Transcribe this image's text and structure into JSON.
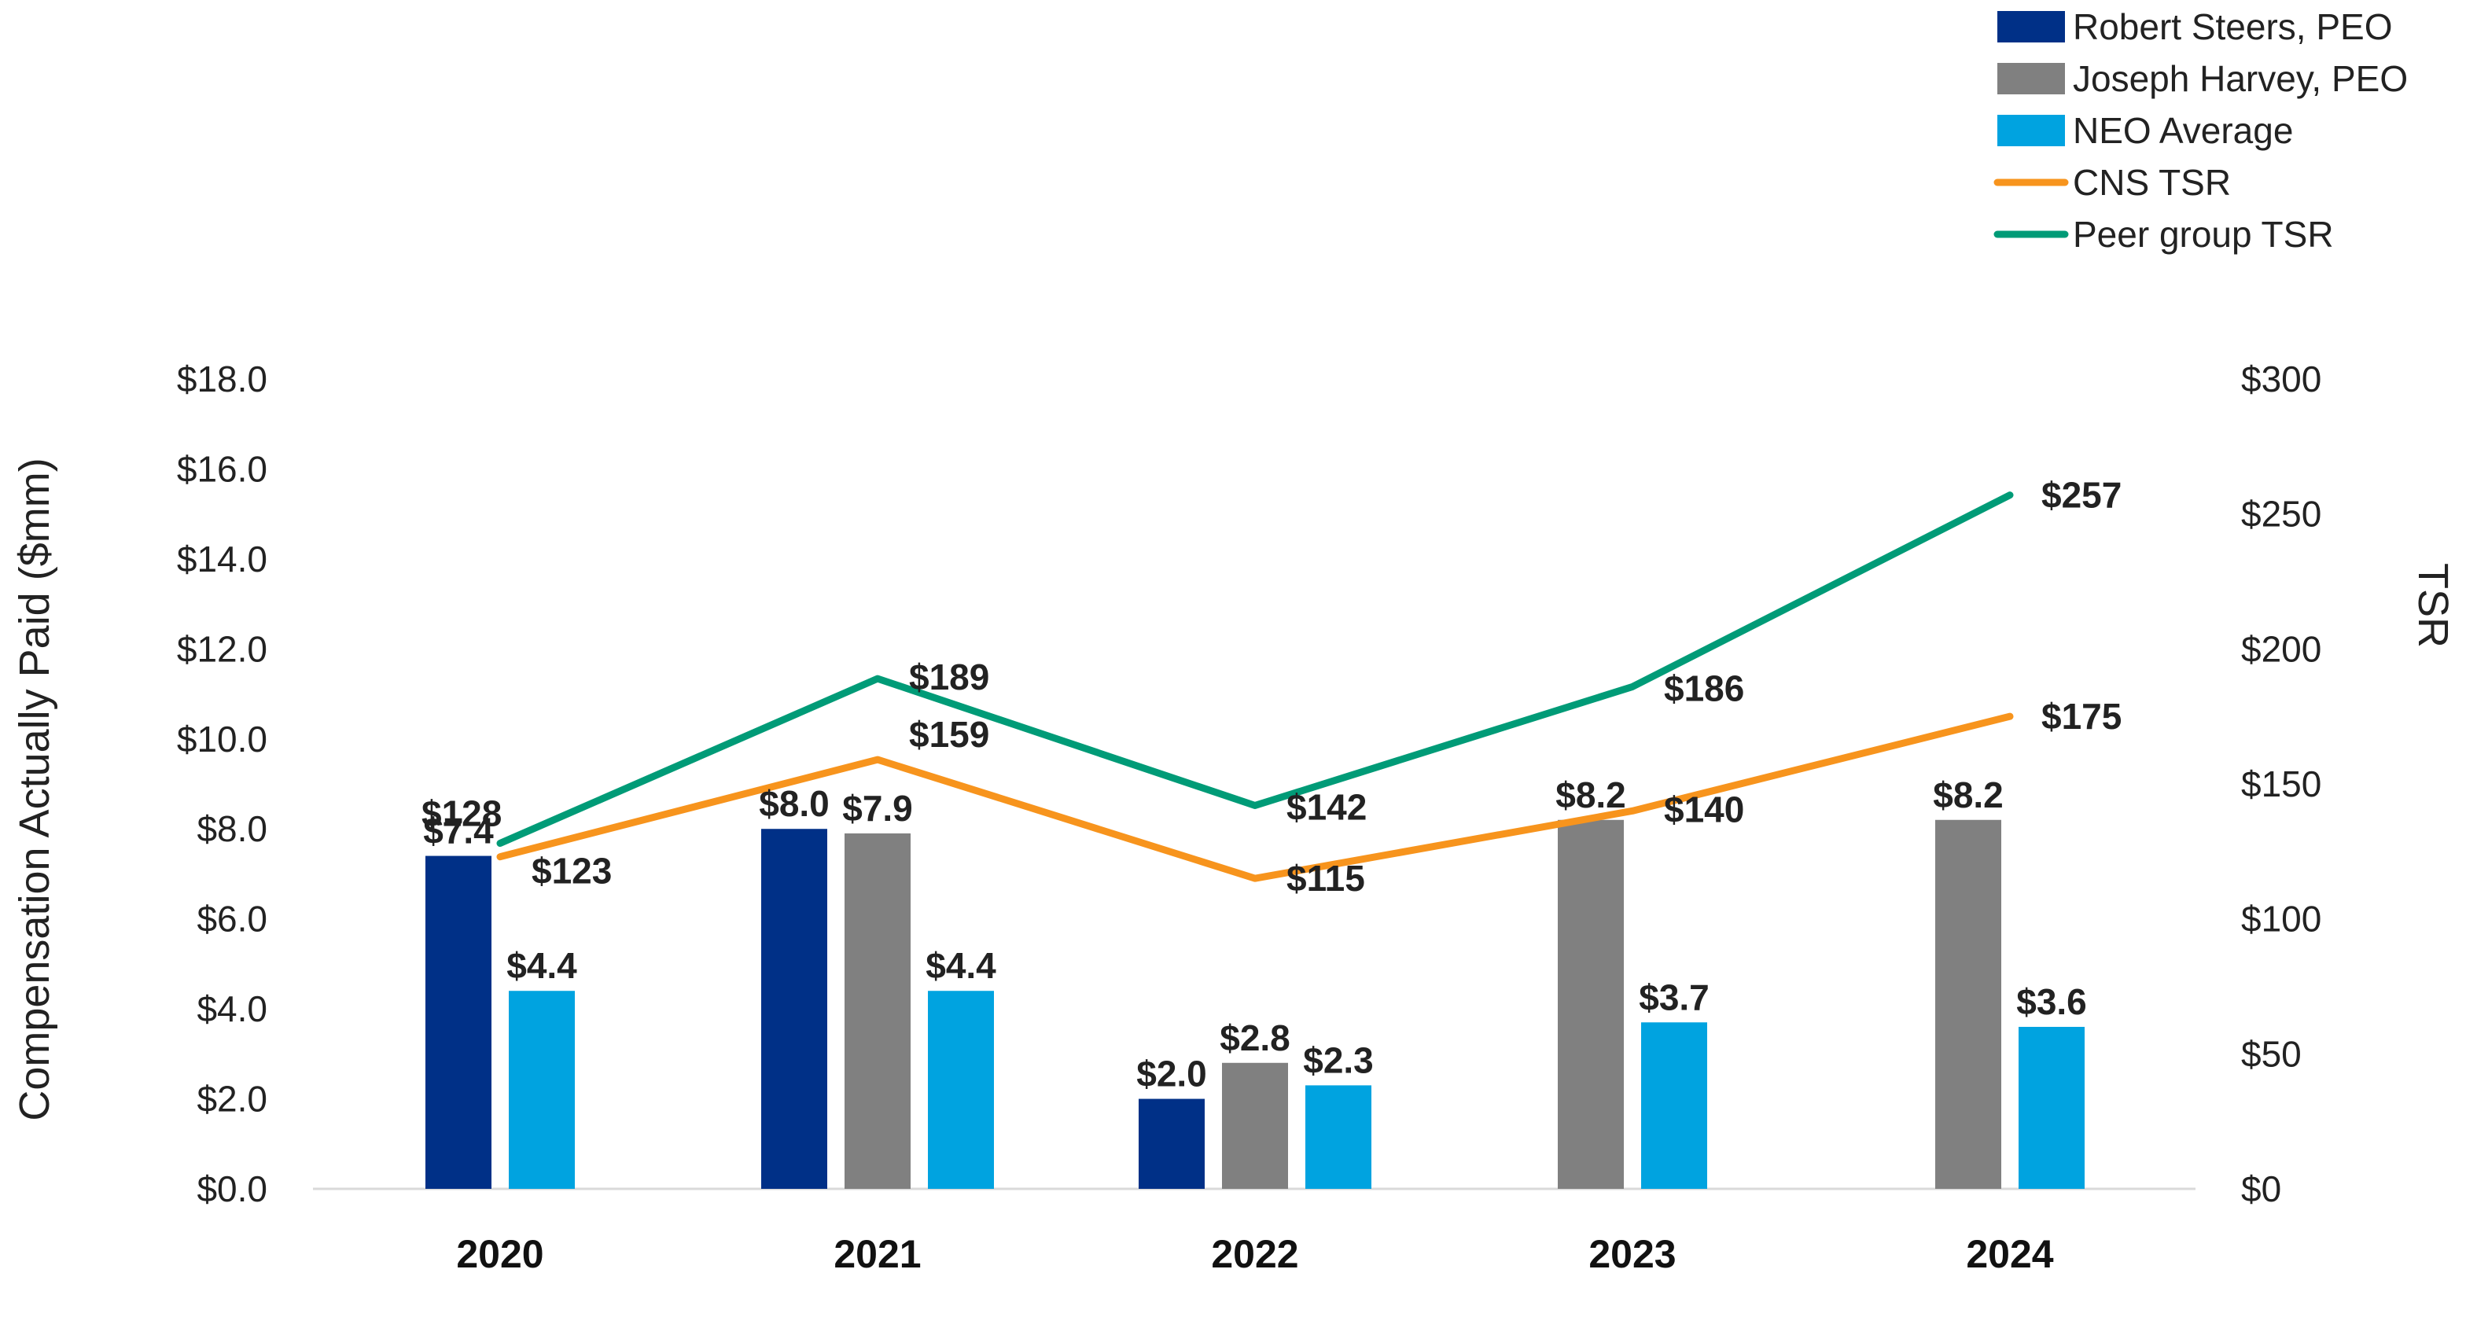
{
  "chart_data": {
    "type": "bar",
    "categories": [
      "2020",
      "2021",
      "2022",
      "2023",
      "2024"
    ],
    "ylabel": "Compensation Actually Paid ($mm)",
    "y2label": "TSR",
    "ylim": [
      0,
      18
    ],
    "y2lim": [
      0,
      300
    ],
    "yticks": [
      "$0.0",
      "$2.0",
      "$4.0",
      "$6.0",
      "$8.0",
      "$10.0",
      "$12.0",
      "$14.0",
      "$16.0",
      "$18.0"
    ],
    "y2ticks": [
      "$0",
      "$50",
      "$100",
      "$150",
      "$200",
      "$250",
      "$300"
    ],
    "grid": false,
    "legend_position": "top-right",
    "bar_series": [
      {
        "name": "Robert Steers, PEO",
        "color": "#003087",
        "values": [
          7.4,
          8.0,
          2.0,
          null,
          null
        ],
        "labels": [
          "$7.4",
          "$8.0",
          "$2.0",
          null,
          null
        ]
      },
      {
        "name": "Joseph Harvey, PEO",
        "color": "#808080",
        "values": [
          null,
          7.9,
          2.8,
          8.2,
          8.2
        ],
        "labels": [
          null,
          "$7.9",
          "$2.8",
          "$8.2",
          "$8.2"
        ]
      },
      {
        "name": "NEO Average",
        "color": "#00A3E0",
        "values": [
          4.4,
          4.4,
          2.3,
          3.7,
          3.6
        ],
        "labels": [
          "$4.4",
          "$4.4",
          "$2.3",
          "$3.7",
          "$3.6"
        ]
      }
    ],
    "line_series": [
      {
        "name": "CNS TSR",
        "color": "#F7941D",
        "axis": "right",
        "values": [
          123,
          159,
          115,
          140,
          175
        ],
        "labels": [
          "$123",
          "$159",
          "$115",
          "$140",
          "$175"
        ]
      },
      {
        "name": "Peer group TSR",
        "color": "#009B77",
        "axis": "right",
        "values": [
          128,
          189,
          142,
          186,
          257
        ],
        "labels": [
          "$128",
          "$189",
          "$142",
          "$186",
          "$257"
        ]
      }
    ]
  }
}
